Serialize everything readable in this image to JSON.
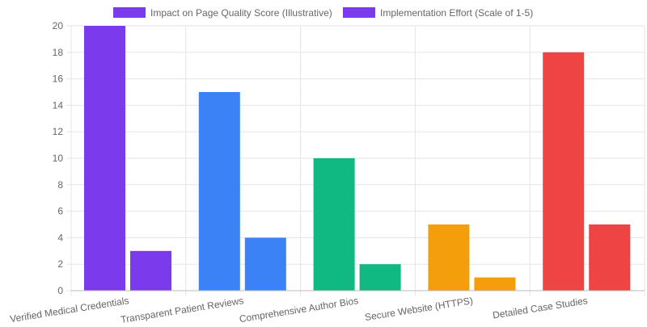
{
  "chart_data": {
    "type": "bar",
    "title": "",
    "xlabel": "",
    "ylabel": "",
    "ylim": [
      0,
      20
    ],
    "yticks": [
      0,
      2,
      4,
      6,
      8,
      10,
      12,
      14,
      16,
      18,
      20
    ],
    "grid": true,
    "legend_position": "top-center",
    "categories": [
      "Verified Medical Credentials",
      "Transparent Patient Reviews",
      "Comprehensive Author Bios",
      "Secure Website (HTTPS)",
      "Detailed Case Studies"
    ],
    "category_colors": [
      "#7c3aed",
      "#3b82f6",
      "#10b981",
      "#f59e0b",
      "#ef4444"
    ],
    "series": [
      {
        "name": "Impact on Page Quality Score (Illustrative)",
        "values": [
          20,
          15,
          10,
          5,
          18
        ],
        "legend_color": "#7c3aed"
      },
      {
        "name": "Implementation Effort (Scale of 1-5)",
        "values": [
          3,
          4,
          2,
          1,
          5
        ],
        "legend_color": "#7c3aed"
      }
    ]
  }
}
